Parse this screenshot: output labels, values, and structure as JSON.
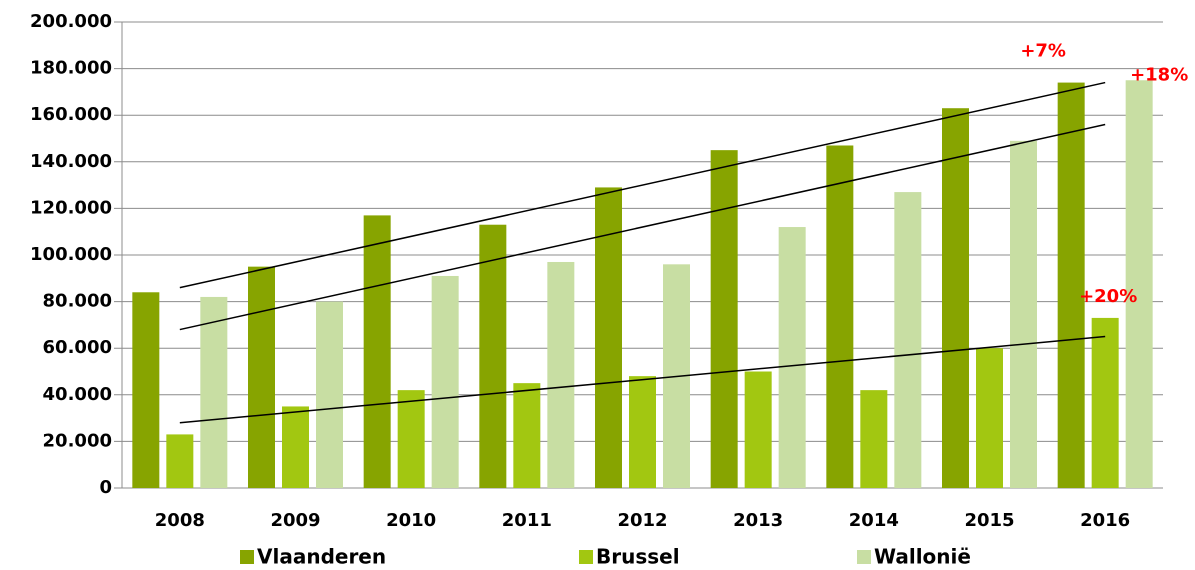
{
  "chart_data": {
    "type": "bar",
    "categories": [
      "2008",
      "2009",
      "2010",
      "2011",
      "2012",
      "2013",
      "2014",
      "2015",
      "2016"
    ],
    "series": [
      {
        "name": "Vlaanderen",
        "color": "#87a400",
        "values": [
          84000,
          95000,
          117000,
          113000,
          129000,
          145000,
          147000,
          163000,
          174000
        ],
        "annotation": "+7%",
        "trendline": [
          86000,
          174000
        ]
      },
      {
        "name": "Brussel",
        "color": "#a2c711",
        "values": [
          23000,
          35000,
          42000,
          45000,
          48000,
          50000,
          42000,
          60000,
          73000
        ],
        "annotation": "+20%",
        "trendline": [
          28000,
          65000
        ]
      },
      {
        "name": "Wallonië",
        "color": "#c8dea3",
        "values": [
          82000,
          80000,
          91000,
          97000,
          96000,
          112000,
          127000,
          149000,
          175000
        ],
        "annotation": "+18%",
        "trendline": [
          68000,
          156000
        ]
      }
    ],
    "ylim": [
      0,
      200000
    ],
    "yticks": [
      0,
      {
        "value": 20000,
        "label": "20.000"
      },
      {
        "value": 40000,
        "label": "40.000"
      },
      {
        "value": 60000,
        "label": "60.000"
      },
      {
        "value": 80000,
        "label": "80.000"
      },
      {
        "value": 100000,
        "label": "100.000"
      },
      {
        "value": 120000,
        "label": "120.000"
      },
      {
        "value": 140000,
        "label": "140.000"
      },
      {
        "value": 160000,
        "label": "160.000"
      },
      {
        "value": 180000,
        "label": "180.000"
      },
      {
        "value": 200000,
        "label": "200.000"
      }
    ],
    "grid": true,
    "legend": "bottom",
    "annotation_color": "#ff0000"
  }
}
